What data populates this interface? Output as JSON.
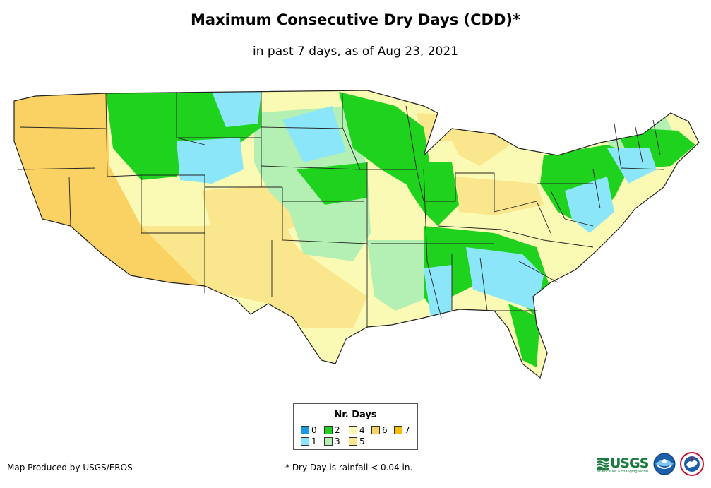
{
  "title": "Maximum Consecutive Dry Days (CDD)*",
  "subtitle": "in past 7 days, as of Aug 23, 2021",
  "legend": {
    "title": "Nr. Days",
    "items": [
      {
        "label": "0",
        "color": "#1a9ae6"
      },
      {
        "label": "1",
        "color": "#8ce6fa"
      },
      {
        "label": "2",
        "color": "#1ed21e"
      },
      {
        "label": "3",
        "color": "#b4f0b4"
      },
      {
        "label": "4",
        "color": "#fafab4"
      },
      {
        "label": "5",
        "color": "#fae68c"
      },
      {
        "label": "6",
        "color": "#fad264"
      },
      {
        "label": "7",
        "color": "#fabe00"
      }
    ]
  },
  "credit": "Map Produced by USGS/EROS",
  "footnote": "* Dry Day is rainfall < 0.04 in.",
  "logos": {
    "usgs": "USGS",
    "usgs_tagline": "science for a changing world"
  },
  "colors": {
    "state_border": "#222222"
  }
}
